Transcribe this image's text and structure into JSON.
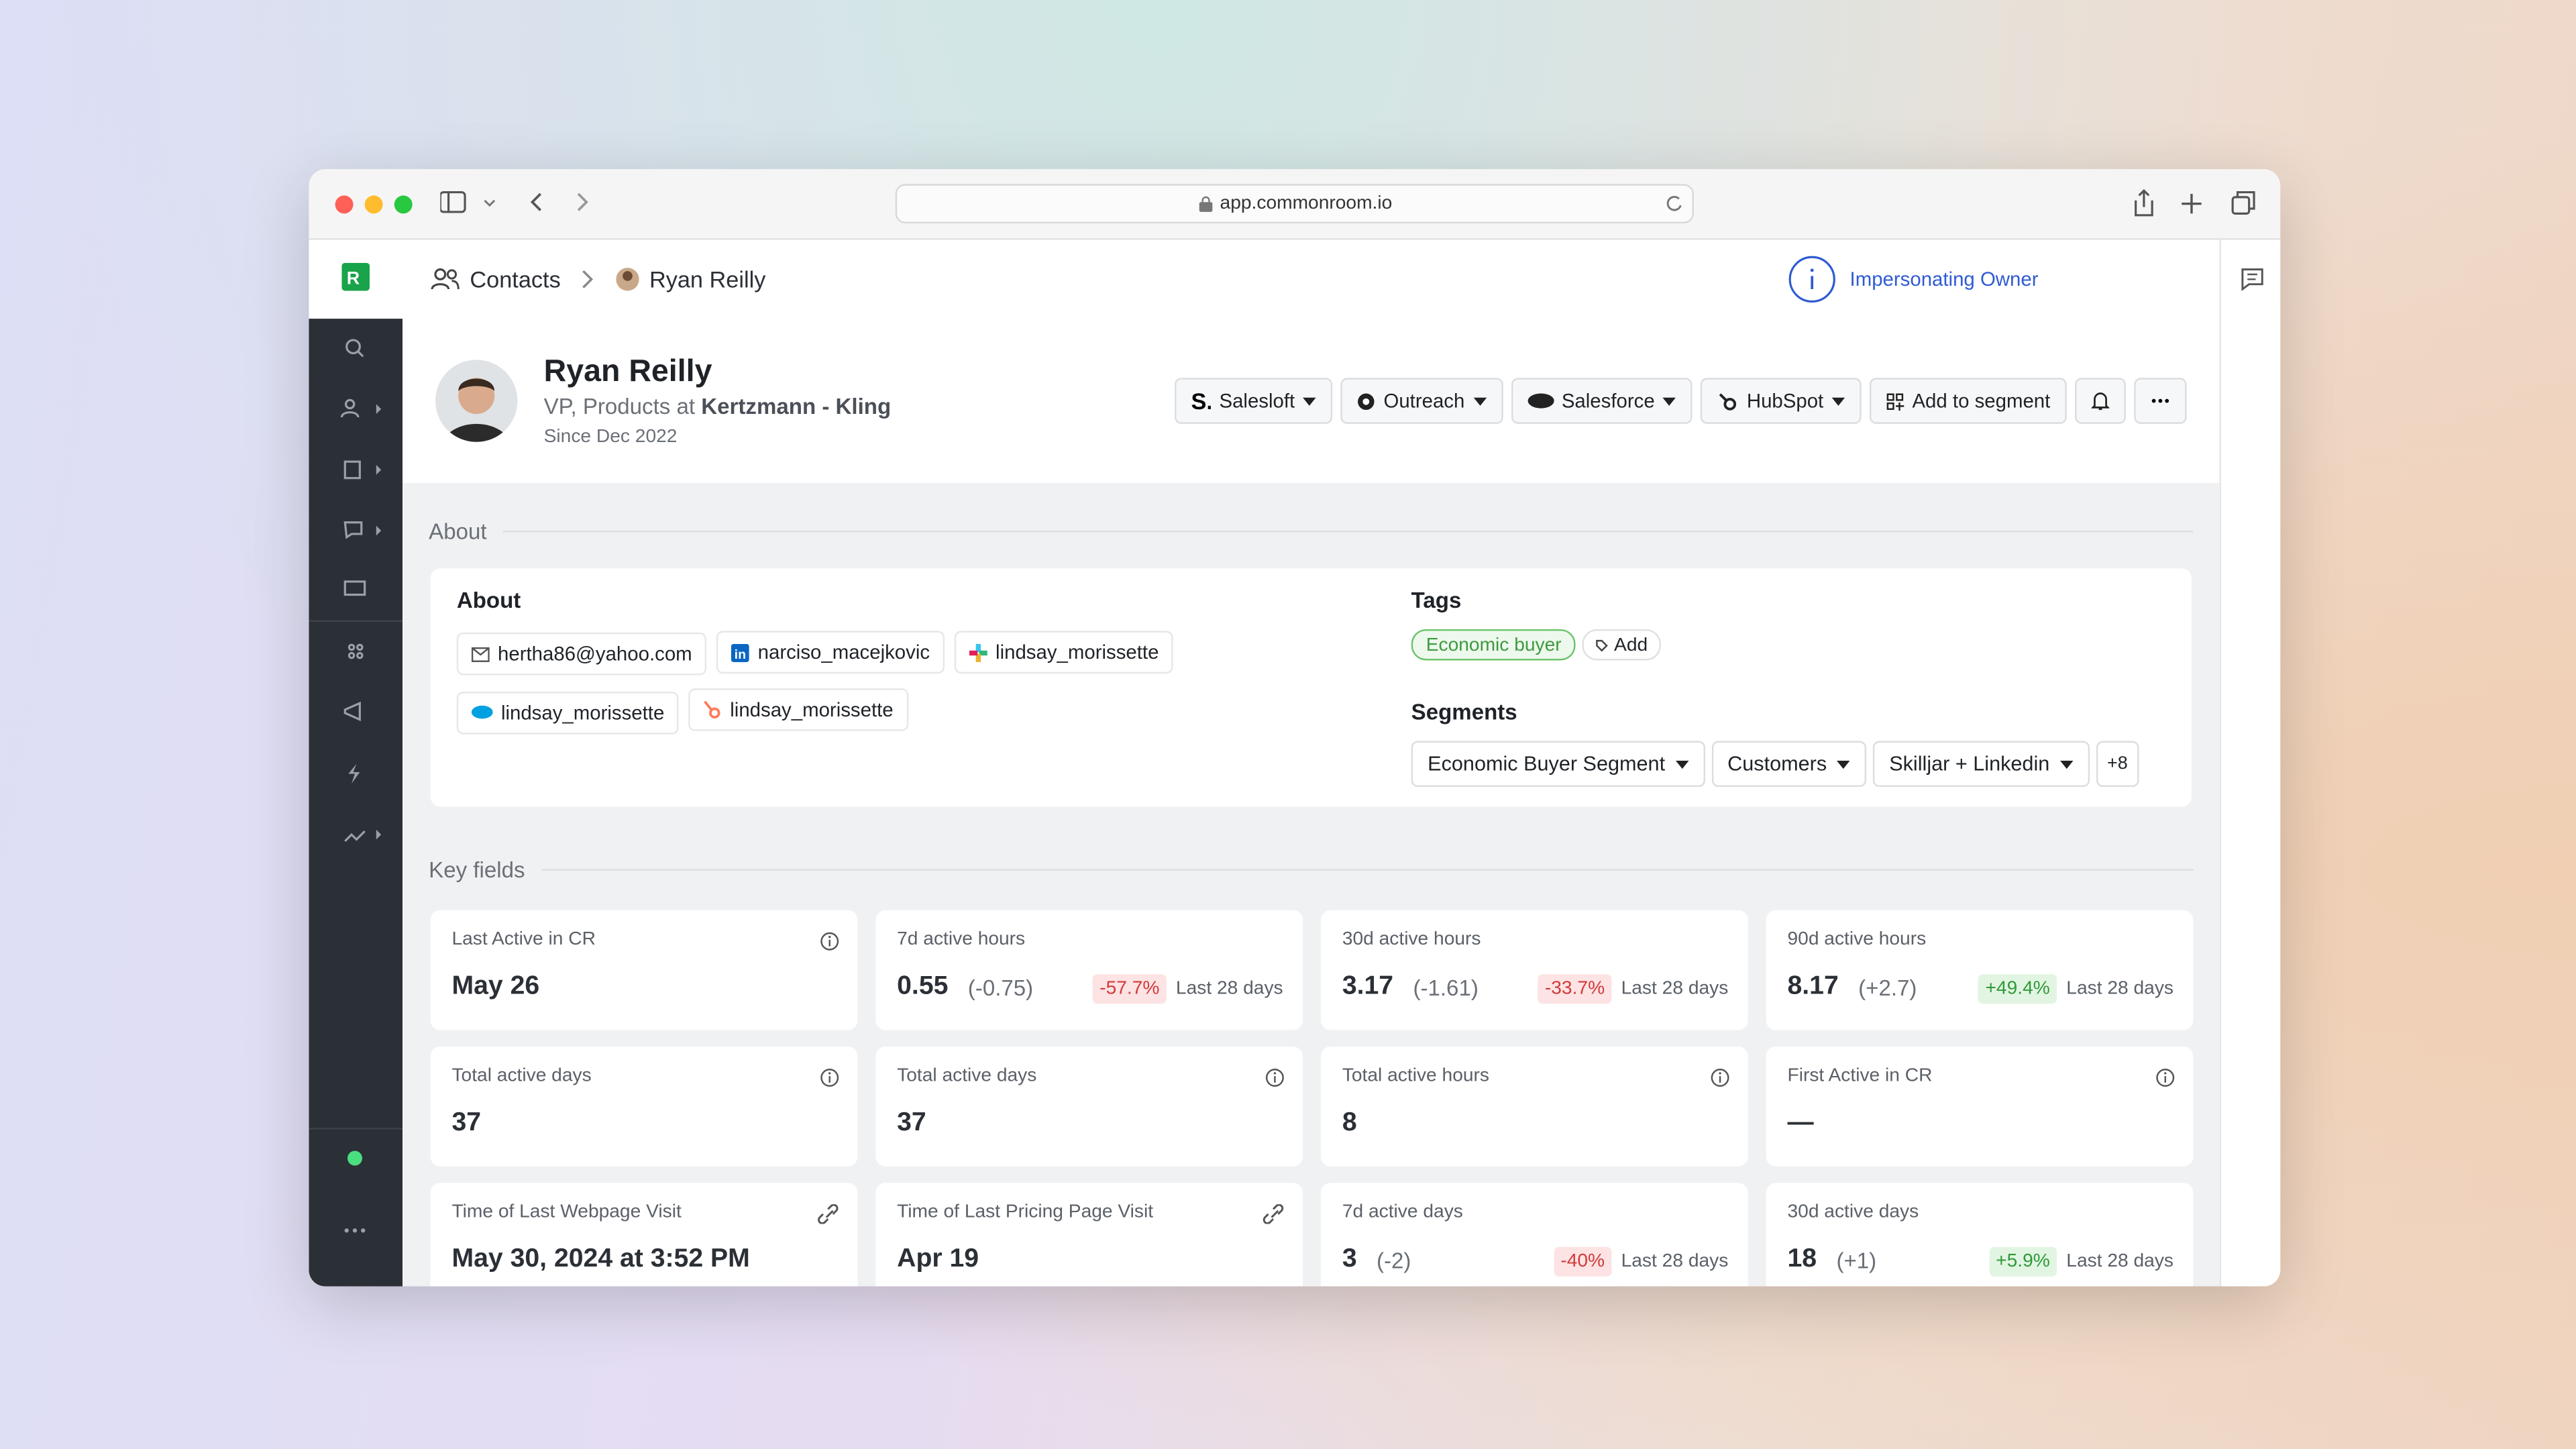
{
  "browser": {
    "url": "app.commonroom.io"
  },
  "topbar": {
    "breadcrumb": [
      "Contacts",
      "Ryan Reilly"
    ],
    "impersonating": "Impersonating Owner"
  },
  "profile": {
    "name": "Ryan Reilly",
    "role": "VP, Products at",
    "company": "Kertzmann - Kling",
    "since": "Since Dec 2022"
  },
  "actions": [
    "Salesloft",
    "Outreach",
    "Salesforce",
    "HubSpot",
    "Add to segment"
  ],
  "about": {
    "heading": "About",
    "title": "About",
    "identities": [
      {
        "icon": "email",
        "label": "hertha86@yahoo.com"
      },
      {
        "icon": "linkedin",
        "label": "narciso_macejkovic"
      },
      {
        "icon": "slack",
        "label": "lindsay_morissette"
      },
      {
        "icon": "salesforce",
        "label": "lindsay_morissette"
      },
      {
        "icon": "hubspot",
        "label": "lindsay_morissette"
      }
    ],
    "tags_title": "Tags",
    "tags": [
      "Economic buyer"
    ],
    "add": "Add",
    "segments_title": "Segments",
    "segments": [
      "Economic Buyer Segment",
      "Customers",
      "Skilljar + Linkedin"
    ],
    "more": "+8"
  },
  "key_fields": {
    "heading": "Key fields",
    "fields": [
      {
        "label": "Last Active in CR",
        "value": "May 26",
        "icon": "info"
      },
      {
        "label": "7d active hours",
        "value": "0.55",
        "delta": "(-0.75)",
        "change": "-57.7%",
        "period": "Last 28 days"
      },
      {
        "label": "30d active hours",
        "value": "3.17",
        "delta": "(-1.61)",
        "change": "-33.7%",
        "period": "Last 28 days"
      },
      {
        "label": "90d active hours",
        "value": "8.17",
        "delta": "(+2.7)",
        "change": "+49.4%",
        "period": "Last 28 days"
      },
      {
        "label": "Total active days",
        "value": "37",
        "icon": "info"
      },
      {
        "label": "Total active days",
        "value": "37",
        "icon": "info"
      },
      {
        "label": "Total active hours",
        "value": "8",
        "icon": "info"
      },
      {
        "label": "First Active in CR",
        "value": "—",
        "icon": "info"
      },
      {
        "label": "Time of Last Webpage Visit",
        "value": "May 30, 2024 at 3:52 PM",
        "icon": "link"
      },
      {
        "label": "Time of Last Pricing Page Visit",
        "value": "Apr 19",
        "icon": "link"
      },
      {
        "label": "7d active days",
        "value": "3",
        "delta": "(-2)",
        "change": "-40%",
        "period": "Last 28 days"
      },
      {
        "label": "30d active days",
        "value": "18",
        "delta": "(+1)",
        "change": "+5.9%",
        "period": "Last 28 days"
      }
    ]
  }
}
